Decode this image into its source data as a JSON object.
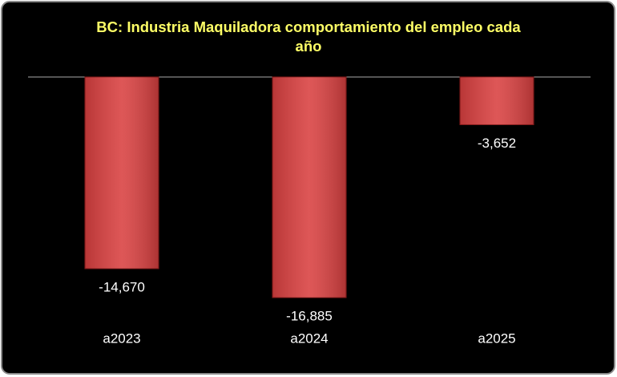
{
  "chart_data": {
    "type": "bar",
    "title": "BC: Industria Maquiladora comportamiento del empleo cada año",
    "categories": [
      "a2023",
      "a2024",
      "a2025"
    ],
    "values": [
      -14670,
      -16885,
      -3652
    ],
    "value_labels": [
      "-14,670",
      "-16,885",
      "-3,652"
    ],
    "color": "#d94040"
  }
}
